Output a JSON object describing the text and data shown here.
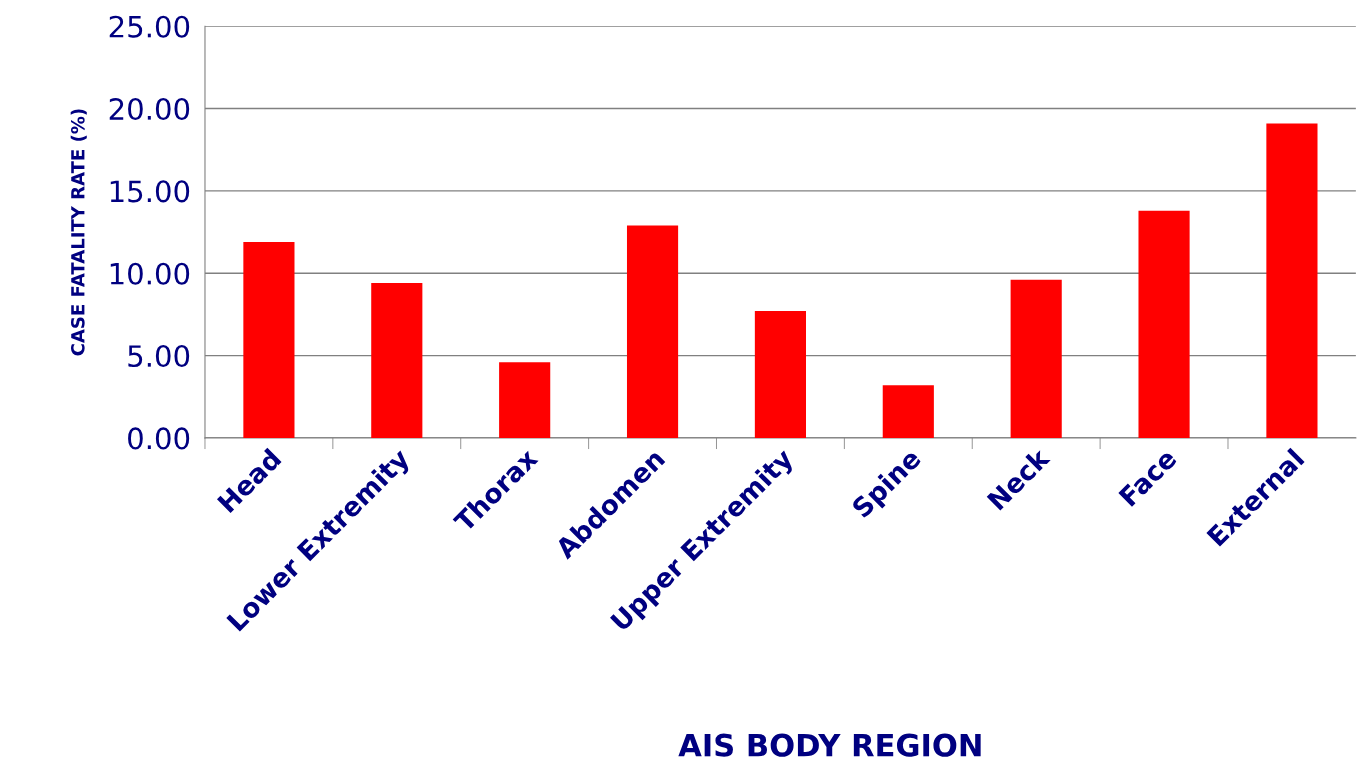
{
  "chart_data": {
    "type": "bar",
    "xlabel": "AIS BODY REGION",
    "ylabel": "CASE FATALITY RATE (%)",
    "categories": [
      "Head",
      "Lower Extremity",
      "Thorax",
      "Abdomen",
      "Upper Extremity",
      "Spine",
      "Neck",
      "Face",
      "External"
    ],
    "values": [
      11.9,
      9.4,
      4.6,
      12.9,
      7.7,
      3.2,
      9.6,
      13.8,
      19.1
    ],
    "color": "#ff0000",
    "ylim": [
      0,
      25
    ],
    "yticks": [
      {
        "value": 0,
        "label": "0.00"
      },
      {
        "value": 5,
        "label": "5.00"
      },
      {
        "value": 10,
        "label": "10.00"
      },
      {
        "value": 15,
        "label": "15.00"
      },
      {
        "value": 20,
        "label": "20.00"
      },
      {
        "value": 25,
        "label": "25.00"
      }
    ],
    "grid": "y"
  }
}
